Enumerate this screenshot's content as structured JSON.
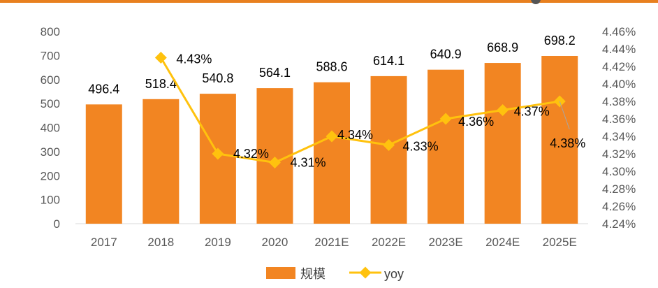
{
  "chart_data": {
    "type": "bar",
    "categories": [
      "2017",
      "2018",
      "2019",
      "2020",
      "2021E",
      "2022E",
      "2023E",
      "2024E",
      "2025E"
    ],
    "series": [
      {
        "name": "规模",
        "type": "bar",
        "axis": "left",
        "values": [
          496.4,
          518.4,
          540.8,
          564.1,
          588.6,
          614.1,
          640.9,
          668.9,
          698.2
        ],
        "labels": [
          "496.4",
          "518.4",
          "540.8",
          "564.1",
          "588.6",
          "614.1",
          "640.9",
          "668.9",
          "698.2"
        ],
        "color": "#f28522"
      },
      {
        "name": "yoy",
        "type": "line",
        "axis": "right",
        "values": [
          null,
          4.43,
          4.32,
          4.31,
          4.34,
          4.33,
          4.36,
          4.37,
          4.38
        ],
        "labels": [
          "",
          "4.43%",
          "4.32%",
          "4.31%",
          "4.34%",
          "4.33%",
          "4.36%",
          "4.37%",
          "4.38%"
        ],
        "color": "#ffc20e"
      }
    ],
    "y_left": {
      "ylim": [
        0,
        800
      ],
      "ticks": [
        "0",
        "100",
        "200",
        "300",
        "400",
        "500",
        "600",
        "700",
        "800"
      ]
    },
    "y_right": {
      "ylim": [
        4.24,
        4.46
      ],
      "ticks": [
        "4.24%",
        "4.26%",
        "4.28%",
        "4.30%",
        "4.32%",
        "4.34%",
        "4.36%",
        "4.38%",
        "4.40%",
        "4.42%",
        "4.44%",
        "4.46%"
      ]
    },
    "title": "",
    "xlabel": "",
    "ylabel": "",
    "grid": false,
    "legend_position": "bottom-center"
  }
}
